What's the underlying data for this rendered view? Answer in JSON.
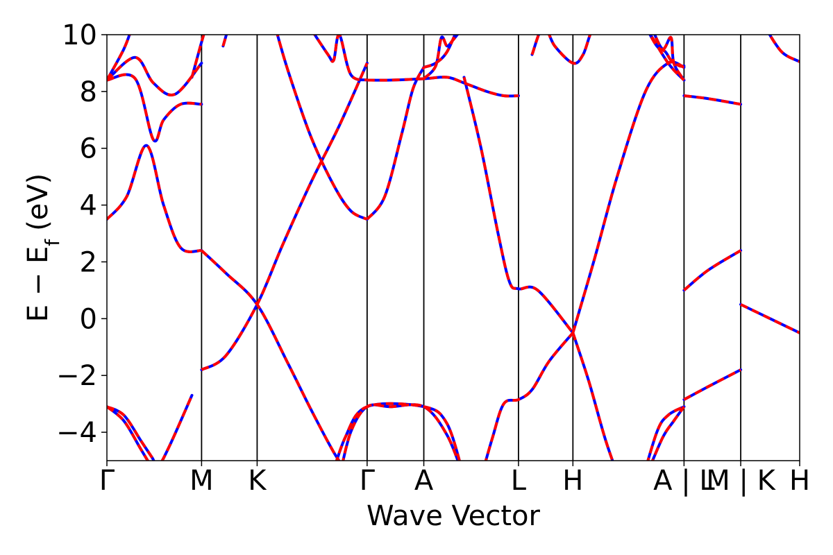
{
  "chart_data": {
    "type": "line",
    "title": "",
    "xlabel": "Wave Vector",
    "ylabel": "E − E",
    "ylabel_subscript": "f",
    "ylabel_unit": "(eV)",
    "ylim": [
      -5,
      10
    ],
    "xlim": [
      0,
      12.22
    ],
    "yticks": [
      -4,
      -2,
      0,
      2,
      4,
      6,
      8,
      10
    ],
    "ytick_labels": [
      "−4",
      "−2",
      "0",
      "2",
      "4",
      "6",
      "8",
      "10"
    ],
    "kpoint_ticks": [
      {
        "x": 0,
        "label": "Γ"
      },
      {
        "x": 1.67,
        "label": "M"
      },
      {
        "x": 2.65,
        "label": "K"
      },
      {
        "x": 4.59,
        "label": "Γ"
      },
      {
        "x": 5.59,
        "label": "A"
      },
      {
        "x": 7.26,
        "label": "L"
      },
      {
        "x": 8.22,
        "label": "H"
      },
      {
        "x": 10.18,
        "label": "A | L"
      },
      {
        "x": 11.18,
        "label": "M | K"
      },
      {
        "x": 12.22,
        "label": "H"
      }
    ],
    "grid": false,
    "line_colors": {
      "overlay": "#ff0000",
      "underlay": "#0000ff"
    },
    "series": [
      {
        "x": [
          0,
          0.35,
          0.7,
          1.0,
          1.3,
          1.67
        ],
        "y": [
          3.5,
          4.3,
          6.1,
          4.0,
          2.5,
          2.4
        ]
      },
      {
        "x": [
          1.67,
          2.1,
          2.65,
          3.2,
          3.6,
          4.0,
          4.3,
          4.59
        ],
        "y": [
          2.4,
          1.6,
          0.5,
          -1.6,
          -3.2,
          -4.7,
          -5.6,
          -6.4
        ]
      },
      {
        "x": [
          1.67,
          2.1,
          2.65,
          3.1,
          3.6,
          4.1,
          4.59
        ],
        "y": [
          -1.8,
          -1.3,
          0.5,
          2.6,
          4.8,
          6.8,
          9.0
        ]
      },
      {
        "x": [
          0,
          0.3,
          0.6,
          0.8,
          0.9,
          1.1,
          1.5
        ],
        "y": [
          -3.1,
          -3.4,
          -4.3,
          -4.9,
          -5.2,
          -4.5,
          -2.7
        ]
      },
      {
        "x": [
          0,
          0.3,
          0.6,
          0.9
        ],
        "y": [
          -3.1,
          -3.6,
          -4.6,
          -5.6
        ]
      },
      {
        "x": [
          0,
          0.5,
          0.82,
          1.0,
          1.3,
          1.67
        ],
        "y": [
          8.4,
          8.45,
          6.3,
          7.0,
          7.55,
          7.55
        ]
      },
      {
        "x": [
          0,
          0.5,
          0.82,
          1.2,
          1.67
        ],
        "y": [
          8.4,
          9.2,
          8.3,
          7.9,
          9.0
        ]
      },
      {
        "x": [
          0,
          0.3,
          0.45
        ],
        "y": [
          8.4,
          9.5,
          10.3
        ]
      },
      {
        "x": [
          1.5,
          1.65,
          1.75
        ],
        "y": [
          8.5,
          9.6,
          10.3
        ]
      },
      {
        "x": [
          2.05,
          2.15
        ],
        "y": [
          9.6,
          10.3
        ]
      },
      {
        "x": [
          2.98,
          3.2,
          3.6,
          4.0,
          4.3,
          4.59
        ],
        "y": [
          10.2,
          8.7,
          6.4,
          4.7,
          3.8,
          3.5
        ]
      },
      {
        "x": [
          3.6,
          3.9,
          4.0,
          4.1,
          4.3,
          4.59
        ],
        "y": [
          10.2,
          9.3,
          9.1,
          10.0,
          8.6,
          8.4
        ]
      },
      {
        "x": [
          4.59,
          4.9,
          5.2,
          5.4,
          5.59
        ],
        "y": [
          3.5,
          4.3,
          6.5,
          8.1,
          8.85
        ]
      },
      {
        "x": [
          4.59,
          5.0,
          5.59,
          6.0,
          6.3,
          6.7,
          7.0,
          7.26
        ],
        "y": [
          8.4,
          8.4,
          8.45,
          8.5,
          8.3,
          8.0,
          7.85,
          7.85
        ]
      },
      {
        "x": [
          5.59,
          5.8,
          6.0,
          6.2
        ],
        "y": [
          8.85,
          9.0,
          9.4,
          10.3
        ]
      },
      {
        "x": [
          5.59,
          5.8,
          5.9,
          6.0,
          6.1,
          6.3
        ],
        "y": [
          8.45,
          8.9,
          9.9,
          9.6,
          9.8,
          10.3
        ]
      },
      {
        "x": [
          4.1,
          4.3,
          4.59,
          5.0,
          5.59,
          6.0,
          6.3
        ],
        "y": [
          -5.6,
          -4.0,
          -3.1,
          -3.1,
          -3.1,
          -4.1,
          -5.6
        ]
      },
      {
        "x": [
          3.9,
          4.2,
          4.59,
          5.59,
          6.0,
          6.3
        ],
        "y": [
          -6.0,
          -4.2,
          -3.1,
          -3.1,
          -3.7,
          -5.6
        ]
      },
      {
        "x": [
          6.6,
          6.8,
          7.0,
          7.26,
          7.5,
          7.8,
          8.22
        ],
        "y": [
          -5.6,
          -4.2,
          -3.0,
          -2.85,
          -2.5,
          -1.5,
          -0.5
        ]
      },
      {
        "x": [
          6.3,
          6.6,
          6.9,
          7.1,
          7.26,
          7.6,
          8.22
        ],
        "y": [
          8.5,
          6.0,
          3.0,
          1.3,
          1.05,
          1.0,
          -0.5
        ]
      },
      {
        "x": [
          7.5,
          7.7,
          7.9,
          8.22,
          8.4,
          8.6,
          8.9
        ],
        "y": [
          9.3,
          10.3,
          9.6,
          9.0,
          9.3,
          10.3,
          10.3
        ]
      },
      {
        "x": [
          8.22,
          8.6,
          9.0,
          9.5,
          9.9,
          10.18
        ],
        "y": [
          -0.5,
          2.1,
          5.0,
          8.0,
          9.0,
          8.85
        ]
      },
      {
        "x": [
          8.22,
          8.5,
          8.8,
          9.1
        ],
        "y": [
          -0.5,
          -2.2,
          -4.3,
          -6.0
        ]
      },
      {
        "x": [
          9.4,
          9.7,
          9.9,
          10.18
        ],
        "y": [
          -6.0,
          -4.0,
          -3.4,
          -3.1
        ]
      },
      {
        "x": [
          9.5,
          9.8,
          10.0,
          10.18
        ],
        "y": [
          -5.6,
          -4.2,
          -3.6,
          -3.1
        ]
      },
      {
        "x": [
          9.5,
          9.7,
          9.85,
          9.95,
          10.1,
          10.18
        ],
        "y": [
          10.3,
          9.6,
          9.4,
          9.1,
          8.9,
          8.9
        ]
      },
      {
        "x": [
          9.6,
          9.8,
          9.95,
          10.0,
          10.18
        ],
        "y": [
          10.3,
          9.5,
          9.9,
          9.0,
          8.4
        ]
      },
      {
        "x": [
          9.5,
          9.9,
          10.18
        ],
        "y": [
          10.3,
          9.0,
          8.4
        ]
      },
      {
        "x": [
          10.18,
          10.6,
          11.18
        ],
        "y": [
          7.85,
          7.75,
          7.55
        ]
      },
      {
        "x": [
          10.18,
          10.6,
          11.18
        ],
        "y": [
          1.0,
          1.7,
          2.4
        ]
      },
      {
        "x": [
          10.18,
          10.6,
          11.18
        ],
        "y": [
          -2.85,
          -2.4,
          -1.8
        ]
      },
      {
        "x": [
          11.18,
          11.7,
          12.22
        ],
        "y": [
          0.5,
          0.0,
          -0.5
        ]
      },
      {
        "x": [
          11.6,
          11.9,
          12.22
        ],
        "y": [
          10.3,
          9.4,
          9.05
        ]
      }
    ]
  }
}
